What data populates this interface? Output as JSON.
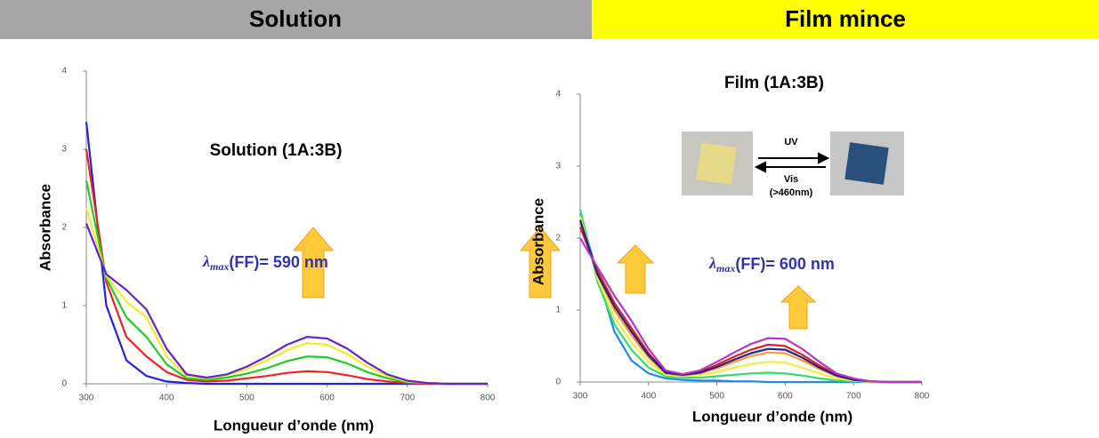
{
  "header": {
    "left": "Solution",
    "right": "Film mince"
  },
  "chart_data": [
    {
      "type": "line",
      "annotation": "Solution (1A:3B)",
      "lambda": {
        "symbol": "λ",
        "subscript": "max",
        "text": "(FF)= 590 nm"
      },
      "xlabel": "Longueur d’onde (nm)",
      "ylabel": "Absorbance",
      "xlim": [
        300,
        800
      ],
      "ylim": [
        0,
        4
      ],
      "xticks": [
        300,
        400,
        500,
        600,
        700,
        800
      ],
      "yticks": [
        0,
        1,
        2,
        3,
        4
      ],
      "x": [
        300,
        325,
        350,
        375,
        400,
        425,
        450,
        475,
        500,
        525,
        550,
        575,
        600,
        625,
        650,
        675,
        700,
        725,
        750,
        775,
        800
      ],
      "series": [
        {
          "color": "#2222dd",
          "values": [
            3.35,
            1.0,
            0.3,
            0.1,
            0.03,
            0.01,
            0,
            0,
            0,
            0,
            0,
            0,
            0,
            0,
            0,
            0,
            0,
            0,
            0,
            0,
            0
          ]
        },
        {
          "color": "#ee2222",
          "values": [
            3.0,
            1.3,
            0.6,
            0.35,
            0.15,
            0.05,
            0.03,
            0.04,
            0.07,
            0.1,
            0.14,
            0.16,
            0.15,
            0.11,
            0.06,
            0.03,
            0.01,
            0,
            0,
            0,
            0
          ]
        },
        {
          "color": "#22cc22",
          "values": [
            2.6,
            1.35,
            0.85,
            0.6,
            0.25,
            0.07,
            0.05,
            0.08,
            0.13,
            0.2,
            0.29,
            0.35,
            0.34,
            0.26,
            0.15,
            0.07,
            0.02,
            0.01,
            0,
            0,
            0
          ]
        },
        {
          "color": "#eeee22",
          "values": [
            2.25,
            1.38,
            1.05,
            0.85,
            0.35,
            0.1,
            0.07,
            0.11,
            0.19,
            0.3,
            0.43,
            0.52,
            0.5,
            0.38,
            0.22,
            0.1,
            0.03,
            0.01,
            0,
            0,
            0
          ]
        },
        {
          "color": "#6622cc",
          "values": [
            2.05,
            1.4,
            1.2,
            0.95,
            0.45,
            0.12,
            0.08,
            0.12,
            0.22,
            0.35,
            0.5,
            0.6,
            0.58,
            0.45,
            0.27,
            0.12,
            0.04,
            0.01,
            0,
            0,
            0
          ]
        }
      ]
    },
    {
      "type": "line",
      "title": "Film (1A:3B)",
      "lambda": {
        "symbol": "λ",
        "subscript": "max",
        "text": "(FF)= 600 nm"
      },
      "inset": {
        "top": "UV",
        "bottom": "Vis",
        "note": "(>460nm)"
      },
      "xlabel": "Longueur d’onde (nm)",
      "ylabel": "Absorbance",
      "xlim": [
        300,
        800
      ],
      "ylim": [
        0,
        4
      ],
      "xticks": [
        300,
        400,
        500,
        600,
        700,
        800
      ],
      "yticks": [
        0,
        1,
        2,
        3,
        4
      ],
      "x": [
        300,
        325,
        350,
        375,
        400,
        425,
        450,
        475,
        500,
        525,
        550,
        575,
        600,
        625,
        650,
        675,
        700,
        725,
        750,
        775,
        800
      ],
      "series": [
        {
          "color": "#2288ee",
          "values": [
            2.35,
            1.5,
            0.7,
            0.3,
            0.12,
            0.05,
            0.03,
            0.02,
            0.02,
            0.01,
            0.01,
            0,
            0,
            0,
            0,
            0,
            0,
            0,
            0,
            0,
            0
          ]
        },
        {
          "color": "#33dd66",
          "values": [
            2.4,
            1.4,
            0.8,
            0.45,
            0.2,
            0.08,
            0.06,
            0.06,
            0.08,
            0.1,
            0.12,
            0.13,
            0.12,
            0.09,
            0.05,
            0.02,
            0.01,
            0,
            0,
            0,
            0
          ]
        },
        {
          "color": "#eeee44",
          "values": [
            2.3,
            1.45,
            0.9,
            0.55,
            0.28,
            0.1,
            0.08,
            0.1,
            0.14,
            0.2,
            0.25,
            0.28,
            0.27,
            0.2,
            0.12,
            0.05,
            0.02,
            0,
            0,
            0,
            0
          ]
        },
        {
          "color": "#ff9933",
          "values": [
            2.2,
            1.5,
            1.0,
            0.65,
            0.34,
            0.12,
            0.09,
            0.12,
            0.19,
            0.28,
            0.36,
            0.41,
            0.4,
            0.3,
            0.18,
            0.08,
            0.03,
            0.01,
            0,
            0,
            0
          ]
        },
        {
          "color": "#dd2222",
          "values": [
            2.15,
            1.55,
            1.1,
            0.75,
            0.4,
            0.14,
            0.1,
            0.14,
            0.24,
            0.35,
            0.45,
            0.52,
            0.5,
            0.38,
            0.23,
            0.1,
            0.04,
            0.01,
            0,
            0,
            0
          ]
        },
        {
          "color": "#222288",
          "values": [
            2.25,
            1.5,
            1.05,
            0.7,
            0.37,
            0.13,
            0.1,
            0.13,
            0.21,
            0.31,
            0.4,
            0.46,
            0.45,
            0.34,
            0.2,
            0.09,
            0.03,
            0.01,
            0,
            0,
            0
          ]
        },
        {
          "color": "#bb33cc",
          "values": [
            2.0,
            1.6,
            1.2,
            0.85,
            0.46,
            0.16,
            0.11,
            0.16,
            0.28,
            0.41,
            0.53,
            0.61,
            0.6,
            0.46,
            0.28,
            0.12,
            0.05,
            0.01,
            0,
            0,
            0
          ]
        }
      ]
    }
  ]
}
